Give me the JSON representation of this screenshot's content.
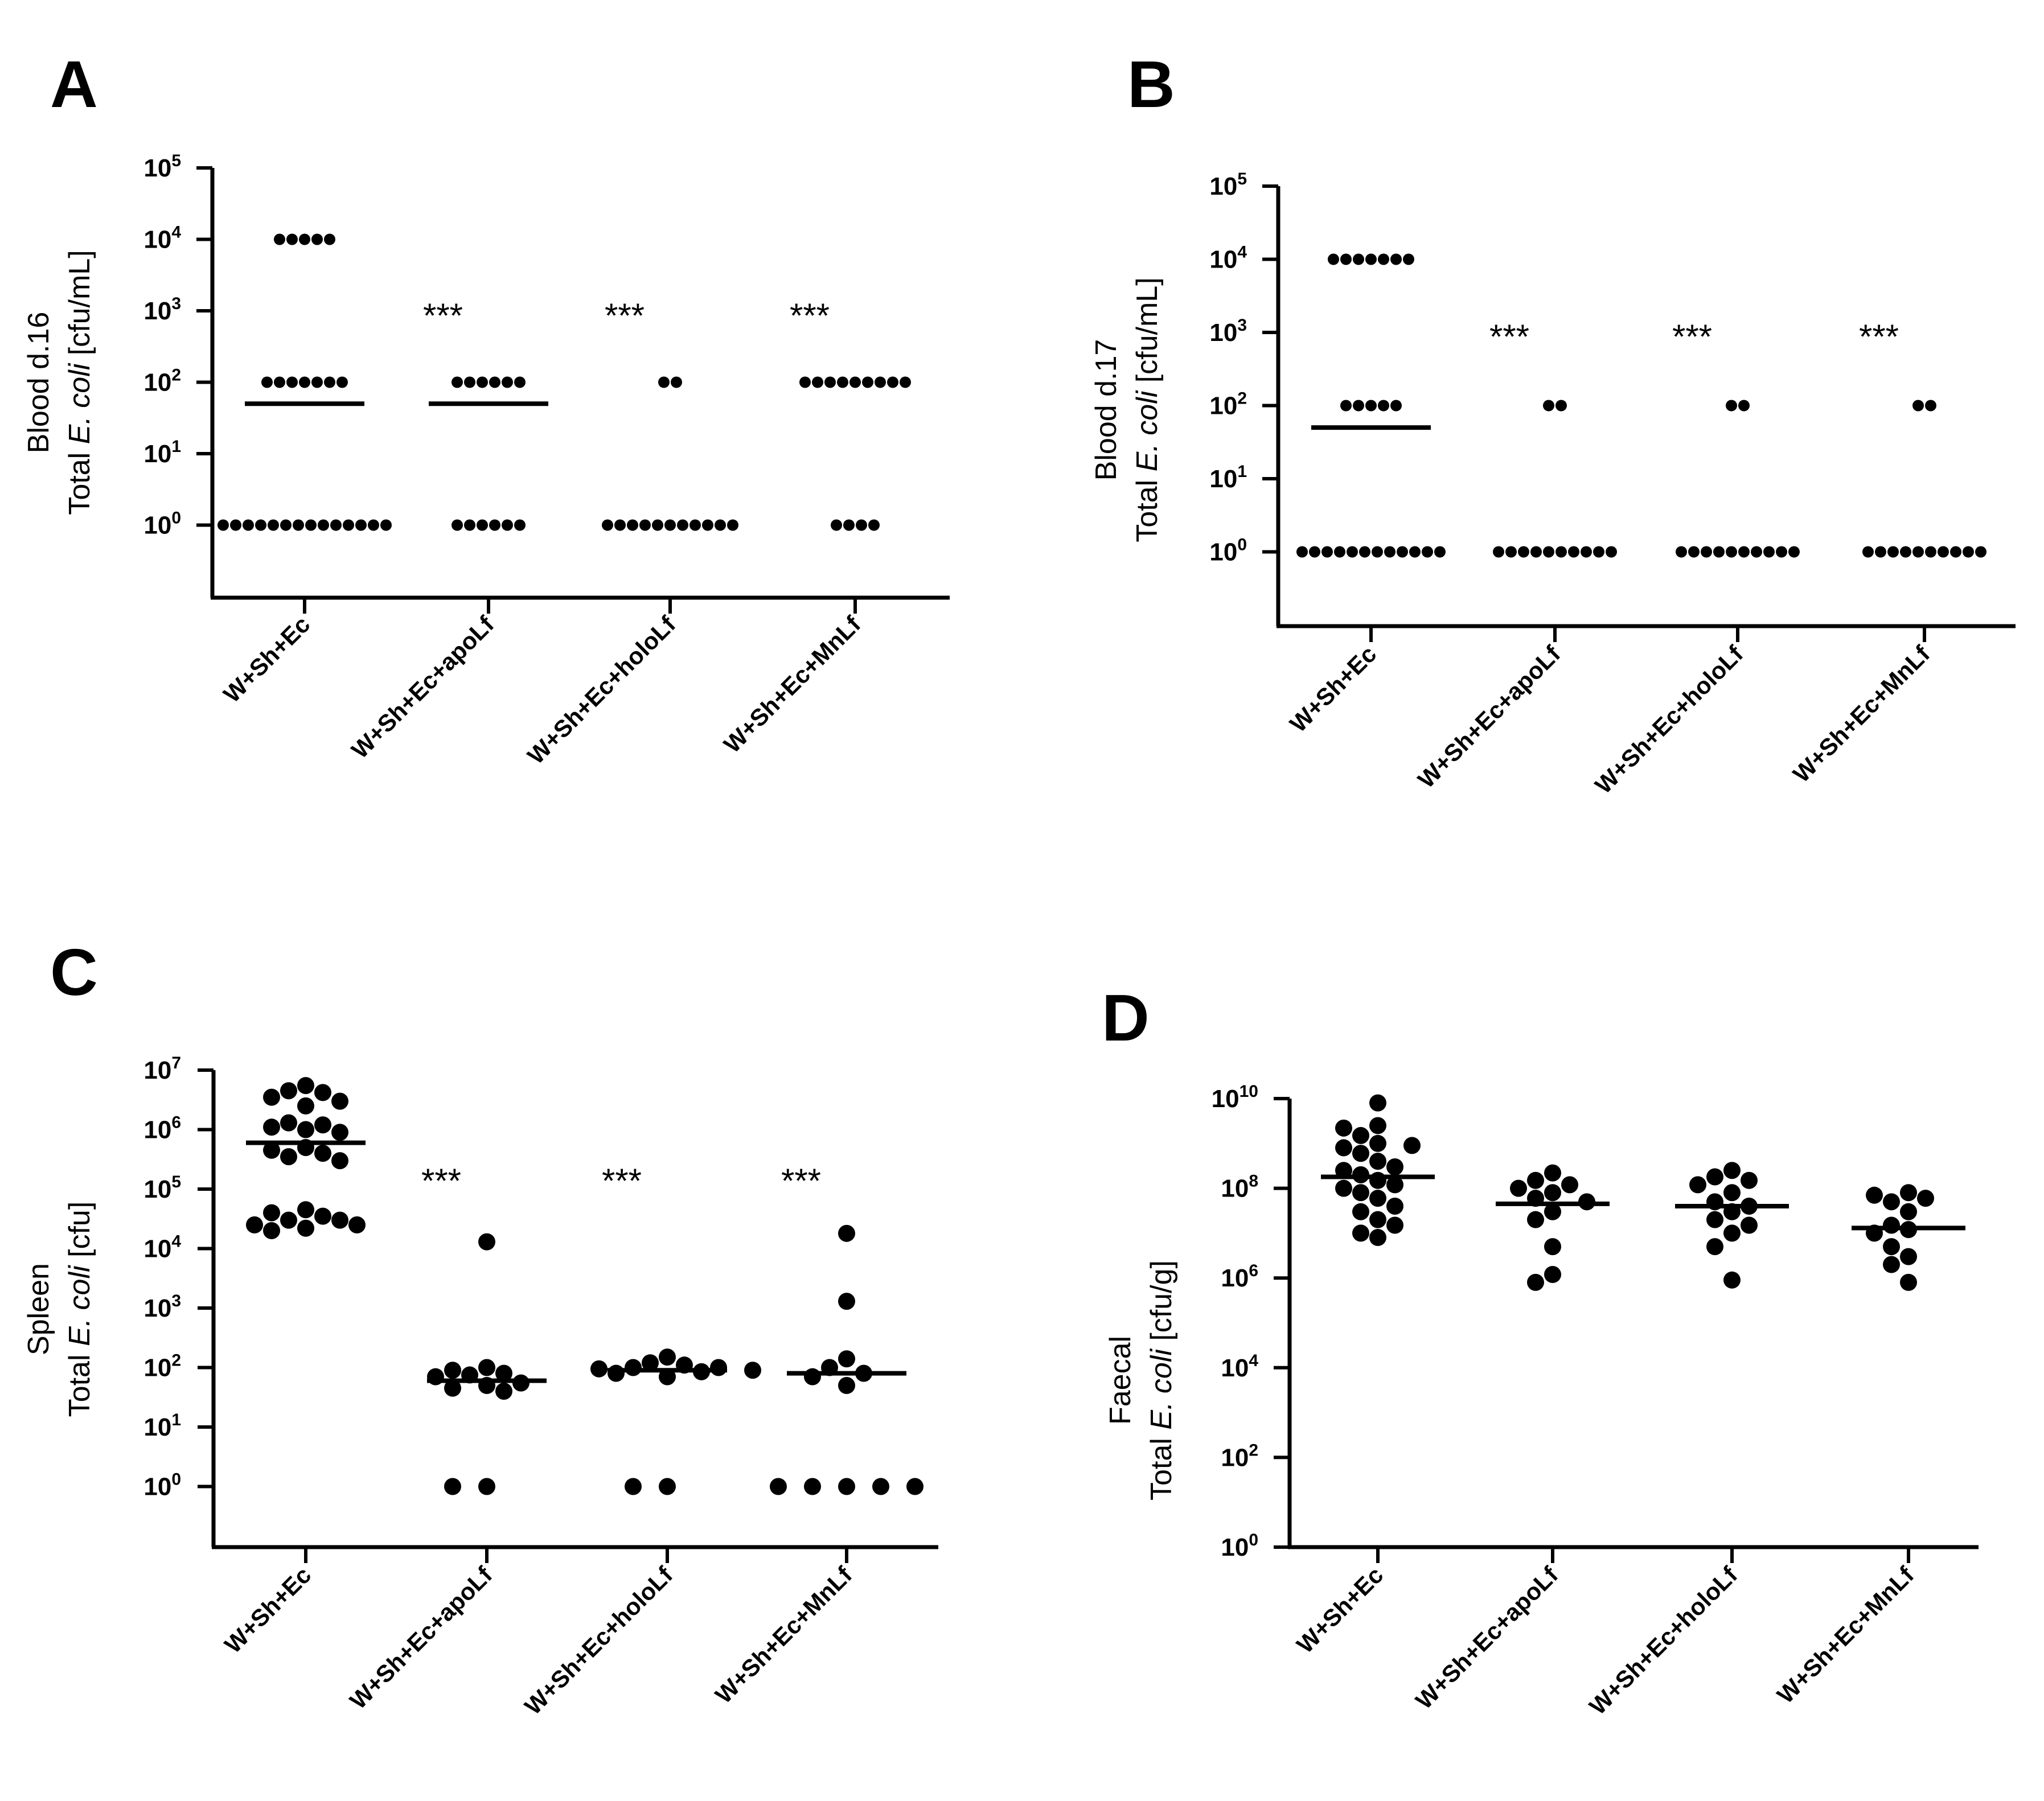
{
  "chart_data": [
    {
      "id": "A",
      "panel_label": "A",
      "type": "scatter",
      "subtype": "dot_plot_with_median",
      "y_scale": "log10",
      "ylim_exp": [
        -1.2,
        5
      ],
      "y_ticks": [
        {
          "base": "10",
          "exp": "0"
        },
        {
          "base": "10",
          "exp": "1"
        },
        {
          "base": "10",
          "exp": "2"
        },
        {
          "base": "10",
          "exp": "3"
        },
        {
          "base": "10",
          "exp": "4"
        },
        {
          "base": "10",
          "exp": "5"
        }
      ],
      "y_title_line1": "Blood d.16",
      "y_title_line2_pre": "Total ",
      "y_title_line2_italic": "E. coli",
      "y_title_line2_post": " [cfu/mL]",
      "categories": [
        "W+Sh+Ec",
        "W+Sh+Ec+apoLf",
        "W+Sh+Ec+holoLf",
        "W+Sh+Ec+MnLf"
      ],
      "groups": [
        {
          "name": "W+Sh+Ec",
          "median": 50,
          "significance": "",
          "points": [
            10000,
            10000,
            10000,
            10000,
            10000,
            100,
            100,
            100,
            100,
            100,
            100,
            100,
            1,
            1,
            1,
            1,
            1,
            1,
            1,
            1,
            1,
            1,
            1,
            1,
            1,
            1
          ]
        },
        {
          "name": "W+Sh+Ec+apoLf",
          "median": 50,
          "significance": "***",
          "points": [
            100,
            100,
            100,
            100,
            100,
            100,
            1,
            1,
            1,
            1,
            1,
            1
          ]
        },
        {
          "name": "W+Sh+Ec+holoLf",
          "median": null,
          "significance": "***",
          "points": [
            100,
            100,
            1,
            1,
            1,
            1,
            1,
            1,
            1,
            1,
            1,
            1,
            1
          ]
        },
        {
          "name": "W+Sh+Ec+MnLf",
          "median": null,
          "significance": "***",
          "points": [
            100,
            100,
            100,
            100,
            100,
            100,
            100,
            100,
            100,
            1,
            1,
            1,
            1
          ]
        }
      ]
    },
    {
      "id": "B",
      "panel_label": "B",
      "type": "scatter",
      "subtype": "dot_plot_with_median",
      "y_scale": "log10",
      "ylim_exp": [
        -1,
        5
      ],
      "y_ticks": [
        {
          "base": "10",
          "exp": "0"
        },
        {
          "base": "10",
          "exp": "1"
        },
        {
          "base": "10",
          "exp": "2"
        },
        {
          "base": "10",
          "exp": "3"
        },
        {
          "base": "10",
          "exp": "4"
        },
        {
          "base": "10",
          "exp": "5"
        }
      ],
      "y_title_line1": "Blood d.17",
      "y_title_line2_pre": "Total ",
      "y_title_line2_italic": "E. coli",
      "y_title_line2_post": " [cfu/mL]",
      "categories": [
        "W+Sh+Ec",
        "W+Sh+Ec+apoLf",
        "W+Sh+Ec+holoLf",
        "W+Sh+Ec+MnLf"
      ],
      "groups": [
        {
          "name": "W+Sh+Ec",
          "median": 50,
          "significance": "",
          "points": [
            10000,
            10000,
            10000,
            10000,
            10000,
            10000,
            10000,
            100,
            100,
            100,
            100,
            100,
            1,
            1,
            1,
            1,
            1,
            1,
            1,
            1,
            1,
            1,
            1,
            1
          ]
        },
        {
          "name": "W+Sh+Ec+apoLf",
          "median": null,
          "significance": "***",
          "points": [
            100,
            100,
            1,
            1,
            1,
            1,
            1,
            1,
            1,
            1,
            1,
            1
          ]
        },
        {
          "name": "W+Sh+Ec+holoLf",
          "median": null,
          "significance": "***",
          "points": [
            100,
            100,
            1,
            1,
            1,
            1,
            1,
            1,
            1,
            1,
            1,
            1
          ]
        },
        {
          "name": "W+Sh+Ec+MnLf",
          "median": null,
          "significance": "***",
          "points": [
            100,
            100,
            1,
            1,
            1,
            1,
            1,
            1,
            1,
            1,
            1,
            1
          ]
        }
      ]
    },
    {
      "id": "C",
      "panel_label": "C",
      "type": "scatter",
      "subtype": "dot_plot_with_median",
      "y_scale": "log10",
      "ylim_exp": [
        -1,
        7
      ],
      "y_ticks": [
        {
          "base": "10",
          "exp": "0"
        },
        {
          "base": "10",
          "exp": "1"
        },
        {
          "base": "10",
          "exp": "2"
        },
        {
          "base": "10",
          "exp": "3"
        },
        {
          "base": "10",
          "exp": "4"
        },
        {
          "base": "10",
          "exp": "5"
        },
        {
          "base": "10",
          "exp": "6"
        },
        {
          "base": "10",
          "exp": "7"
        }
      ],
      "y_title_line1": "Spleen",
      "y_title_line2_pre": "Total ",
      "y_title_line2_italic": "E. coli",
      "y_title_line2_post": " [cfu]",
      "categories": [
        "W+Sh+Ec",
        "W+Sh+Ec+apoLf",
        "W+Sh+Ec+holoLf",
        "W+Sh+Ec+MnLf"
      ],
      "groups": [
        {
          "name": "W+Sh+Ec",
          "median": 600000,
          "significance": "",
          "points": [
            5500000,
            4500000,
            3500000,
            3000000,
            4200000,
            2500000,
            1200000,
            1000000,
            1300000,
            900000,
            1100000,
            500000,
            400000,
            350000,
            300000,
            450000,
            45000,
            40000,
            30000,
            35000,
            25000,
            25000,
            20000,
            22000,
            30000
          ]
        },
        {
          "name": "W+Sh+Ec+apoLf",
          "median": 60,
          "significance": "***",
          "points": [
            13000,
            100,
            90,
            80,
            75,
            70,
            55,
            50,
            45,
            40,
            1,
            1
          ]
        },
        {
          "name": "W+Sh+Ec+holoLf",
          "median": 90,
          "significance": "***",
          "points": [
            150,
            120,
            110,
            100,
            100,
            95,
            90,
            85,
            80,
            70,
            1,
            1
          ]
        },
        {
          "name": "W+Sh+Ec+MnLf",
          "median": 80,
          "significance": "***",
          "points": [
            18000,
            1300,
            140,
            100,
            80,
            70,
            50,
            1,
            1,
            1,
            1,
            1
          ]
        }
      ]
    },
    {
      "id": "D",
      "panel_label": "D",
      "type": "scatter",
      "subtype": "dot_plot_with_median",
      "y_scale": "log10",
      "ylim_exp": [
        0,
        10
      ],
      "y_ticks": [
        {
          "base": "10",
          "exp": "0"
        },
        {
          "base": "10",
          "exp": "2"
        },
        {
          "base": "10",
          "exp": "4"
        },
        {
          "base": "10",
          "exp": "6"
        },
        {
          "base": "10",
          "exp": "8"
        },
        {
          "base": "10",
          "exp": "10"
        }
      ],
      "y_title_line1": "Faecal",
      "y_title_line2_pre": "Total ",
      "y_title_line2_italic": "E. coli",
      "y_title_line2_post": " [cfu/g]",
      "categories": [
        "W+Sh+Ec",
        "W+Sh+Ec+apoLf",
        "W+Sh+Ec+holoLf",
        "W+Sh+Ec+MnLf"
      ],
      "groups": [
        {
          "name": "W+Sh+Ec",
          "median": 180000000,
          "significance": "",
          "points": [
            8000000000,
            2500000000,
            2200000000,
            1500000000,
            1000000000,
            900000000,
            800000000,
            600000000,
            400000000,
            300000000,
            250000000,
            200000000,
            150000000,
            120000000,
            100000000,
            80000000,
            60000000,
            40000000,
            30000000,
            20000000,
            15000000,
            10000000,
            8000000
          ]
        },
        {
          "name": "W+Sh+Ec+apoLf",
          "median": 45000000,
          "significance": "",
          "points": [
            220000000,
            150000000,
            120000000,
            100000000,
            80000000,
            60000000,
            50000000,
            30000000,
            20000000,
            5000000,
            1200000,
            800000
          ]
        },
        {
          "name": "W+Sh+Ec+holoLf",
          "median": 40000000,
          "significance": "",
          "points": [
            250000000,
            180000000,
            150000000,
            120000000,
            80000000,
            50000000,
            40000000,
            30000000,
            20000000,
            15000000,
            10000000,
            5000000,
            900000
          ]
        },
        {
          "name": "W+Sh+Ec+MnLf",
          "median": 13000000,
          "significance": "",
          "points": [
            80000000,
            70000000,
            60000000,
            50000000,
            30000000,
            15000000,
            12000000,
            10000000,
            5000000,
            3000000,
            2000000,
            800000
          ]
        }
      ]
    }
  ]
}
